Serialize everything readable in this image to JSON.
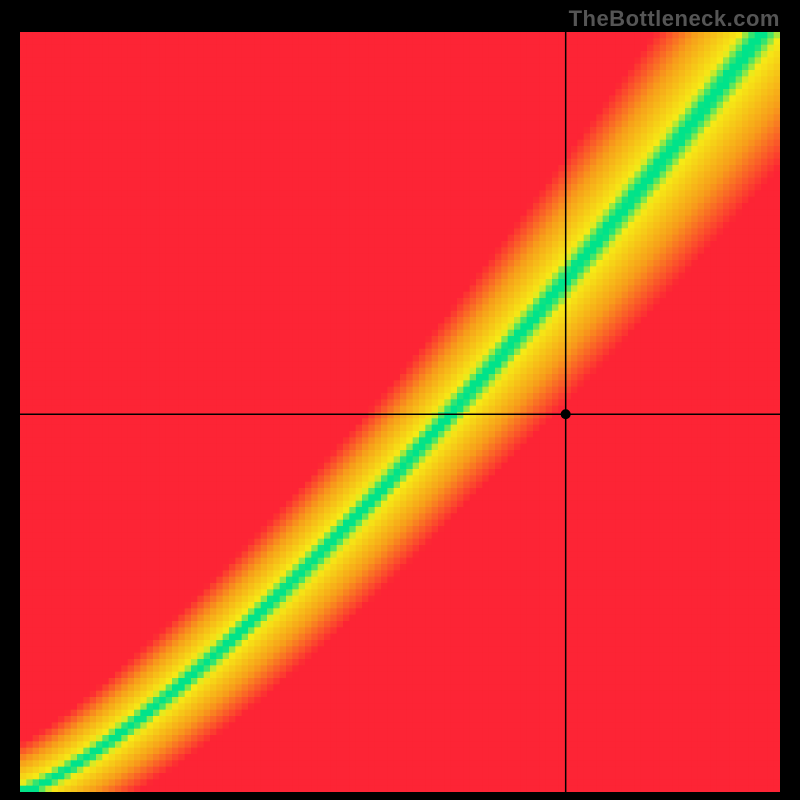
{
  "watermark_text": "TheBottleneck.com",
  "watermark_color": "#555555",
  "watermark_fontsize": 22,
  "background_color": "#000000",
  "heatmap": {
    "type": "heatmap",
    "resolution": 120,
    "xlim": [
      0.0,
      1.0
    ],
    "ylim": [
      0.0,
      1.0
    ],
    "ridge_curve_comment": "optimal curve y = a*x^p; green band centered on it",
    "ridge_a": 1.03,
    "ridge_p": 1.28,
    "dist_scale": 0.065,
    "corner_pull": 0.7,
    "green_threshold": 0.03,
    "yellow_threshold": 0.12,
    "color_green": "#00e38a",
    "color_yellow": "#f6eb16",
    "color_orange": "#f89e1b",
    "color_red": "#fd2435",
    "crosshair_x": 0.718,
    "crosshair_y": 0.497,
    "crosshair_color": "#000000",
    "crosshair_width": 1.5,
    "marker_radius": 5,
    "marker_color": "#000000"
  }
}
